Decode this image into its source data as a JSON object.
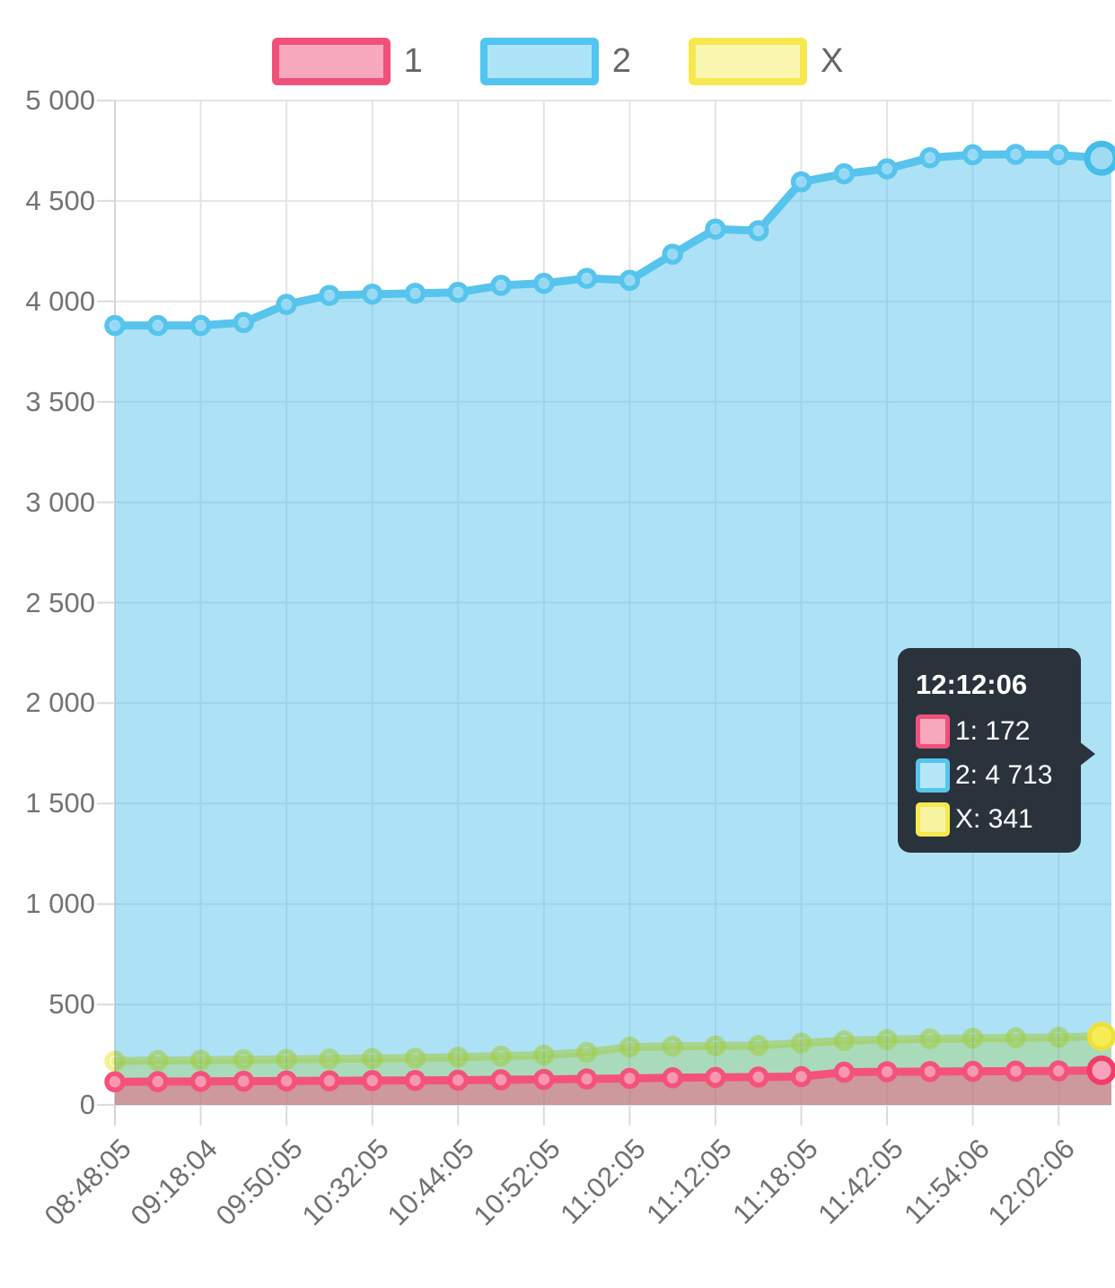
{
  "legend": {
    "items": [
      {
        "label": "1",
        "color": "#F0517B",
        "fill": "#F8A8BC"
      },
      {
        "label": "2",
        "color": "#52C5F0",
        "fill": "#AEE4F8"
      },
      {
        "label": "X",
        "color": "#F6E94F",
        "fill": "#FAF7B0"
      }
    ]
  },
  "tooltip": {
    "title": "12:12:06",
    "background": "#2A333C",
    "rows": [
      {
        "series": "1",
        "label": "1: 172",
        "color": "#F0517B",
        "fill": "#F8A8BC"
      },
      {
        "series": "2",
        "label": "2: 4 713",
        "color": "#57C4ED",
        "fill": "#B5E7F9"
      },
      {
        "series": "X",
        "label": "X: 341",
        "color": "#F6E94F",
        "fill": "#F8F4A2"
      }
    ]
  },
  "chart_data": {
    "type": "area",
    "title": "",
    "xlabel": "",
    "ylabel": "",
    "ylim": [
      0,
      5000
    ],
    "y_tick_step": 500,
    "y_tick_labels": [
      "0",
      "500",
      "1 000",
      "1 500",
      "2 000",
      "2 500",
      "3 000",
      "3 500",
      "4 000",
      "4 500",
      "5 000"
    ],
    "grid": true,
    "legend_position": "top",
    "x_tick_labels": [
      "08:48:05",
      "09:18:04",
      "09:50:05",
      "10:32:05",
      "10:44:05",
      "10:52:05",
      "11:02:05",
      "11:12:05",
      "11:18:05",
      "11:42:05",
      "11:54:06",
      "12:02:06"
    ],
    "points_per_tick": 2,
    "last_point_time": "12:12:06",
    "series": [
      {
        "name": "1",
        "color": "#F4527B",
        "values": [
          115,
          116,
          117,
          118,
          119,
          120,
          121,
          122,
          123,
          125,
          127,
          129,
          132,
          135,
          137,
          139,
          141,
          163,
          165,
          166,
          167,
          168,
          169,
          172
        ]
      },
      {
        "name": "2",
        "color": "#57C4ED",
        "values": [
          3880,
          3880,
          3880,
          3895,
          3985,
          4030,
          4036,
          4040,
          4045,
          4080,
          4090,
          4115,
          4105,
          4235,
          4360,
          4352,
          4595,
          4635,
          4660,
          4715,
          4730,
          4732,
          4730,
          4713
        ]
      },
      {
        "name": "X",
        "color": "#F0E850",
        "values": [
          218,
          221,
          223,
          225,
          227,
          229,
          231,
          233,
          238,
          243,
          248,
          262,
          288,
          292,
          294,
          296,
          308,
          320,
          325,
          329,
          332,
          334,
          337,
          341
        ]
      }
    ],
    "highlighted_point": {
      "time": "12:12:06",
      "values": {
        "1": 172,
        "2": 4713,
        "X": 341
      }
    }
  }
}
